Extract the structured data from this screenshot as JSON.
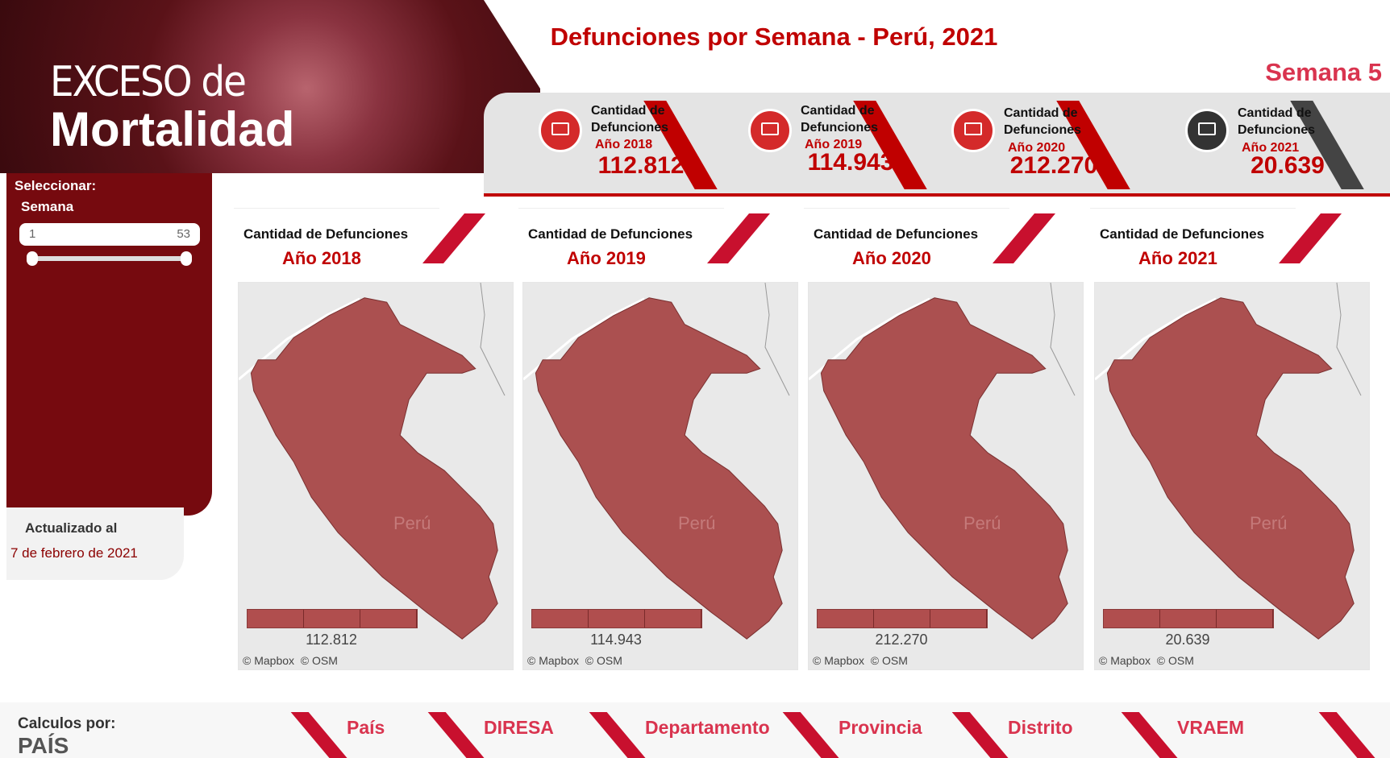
{
  "header": {
    "logo_line1": "EXCESO de",
    "logo_line2": "Mortalidad",
    "title": "Defunciones por Semana - Perú, 2021",
    "week": "Semana 5"
  },
  "kpis": [
    {
      "label": "Cantidad de Defunciones",
      "year": "Año 2018",
      "value": "112.812"
    },
    {
      "label": "Cantidad de Defunciones",
      "year": "Año 2019",
      "value": "114.943"
    },
    {
      "label": "Cantidad de Defunciones",
      "year": "Año 2020",
      "value": "212.270"
    },
    {
      "label": "Cantidad de Defunciones",
      "year": "Año 2021",
      "value": "20.639"
    }
  ],
  "sidebar": {
    "select_label": "Seleccionar:",
    "filter_label": "Semana",
    "slider_min": 1,
    "slider_max": 53,
    "updated_label": "Actualizado al",
    "updated_date": "7 de febrero de 2021"
  },
  "maps": [
    {
      "header": "Cantidad de Defunciones",
      "year": "Año 2018",
      "country": "Perú",
      "value": "112.812",
      "attribution": "© Mapbox  © OSM"
    },
    {
      "header": "Cantidad de Defunciones",
      "year": "Año 2019",
      "country": "Perú",
      "value": "114.943",
      "attribution": "© Mapbox  © OSM"
    },
    {
      "header": "Cantidad de Defunciones",
      "year": "Año 2020",
      "country": "Perú",
      "value": "212.270",
      "attribution": "© Mapbox  © OSM"
    },
    {
      "header": "Cantidad de Defunciones",
      "year": "Año 2021",
      "country": "Perú",
      "value": "20.639",
      "attribution": "© Mapbox  © OSM"
    }
  ],
  "footer": {
    "label": "Calculos por:",
    "level": "PAÍS",
    "tabs": [
      "País",
      "DIRESA",
      "Departamento",
      "Provincia",
      "Distrito",
      "VRAEM"
    ]
  }
}
